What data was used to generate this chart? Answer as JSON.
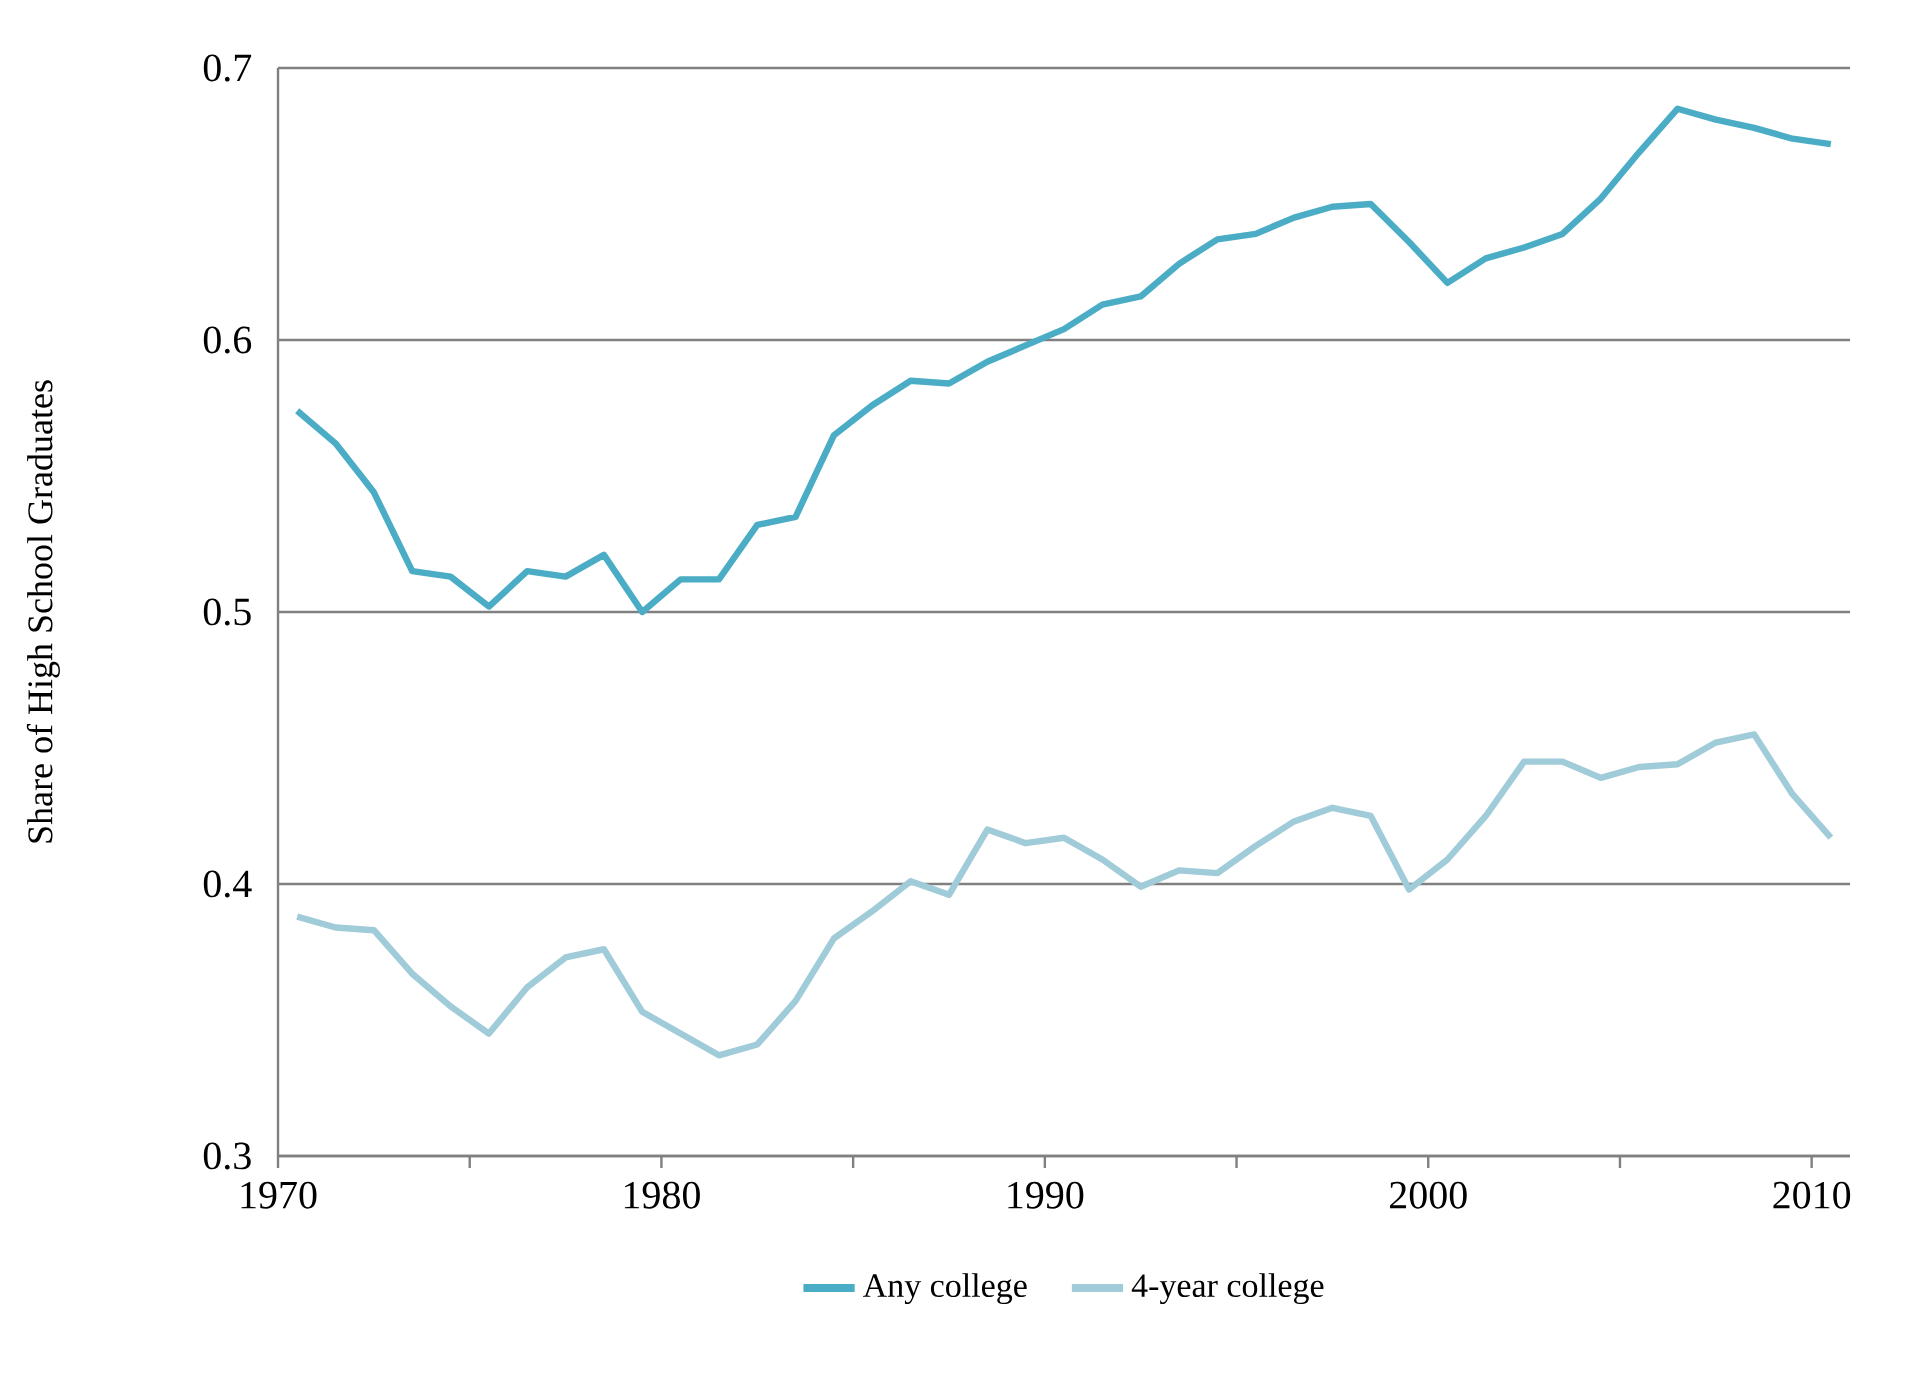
{
  "chart_data": {
    "type": "line",
    "ylabel": "Share of High School Graduates",
    "x": [
      1970.5,
      1971.5,
      1972.5,
      1973.5,
      1974.5,
      1975.5,
      1976.5,
      1977.5,
      1978.5,
      1979.5,
      1980.5,
      1981.5,
      1982.5,
      1983.5,
      1984.5,
      1985.5,
      1986.5,
      1987.5,
      1988.5,
      1989.5,
      1990.5,
      1991.5,
      1992.5,
      1993.5,
      1994.5,
      1995.5,
      1996.5,
      1997.5,
      1998.5,
      1999.5,
      2000.5,
      2001.5,
      2002.5,
      2003.5,
      2004.5,
      2005.5,
      2006.5,
      2007.5,
      2008.5,
      2009.5,
      2010.5
    ],
    "series": [
      {
        "name": "Any college",
        "color": "#4bacc6",
        "values": [
          0.574,
          0.562,
          0.544,
          0.515,
          0.513,
          0.502,
          0.515,
          0.513,
          0.521,
          0.5,
          0.512,
          0.512,
          0.532,
          0.535,
          0.565,
          0.576,
          0.585,
          0.584,
          0.592,
          0.598,
          0.604,
          0.613,
          0.616,
          0.628,
          0.637,
          0.639,
          0.645,
          0.649,
          0.65,
          0.636,
          0.621,
          0.63,
          0.634,
          0.639,
          0.652,
          0.669,
          0.685,
          0.681,
          0.678,
          0.674,
          0.672
        ]
      },
      {
        "name": "4-year college",
        "color": "#a0cbd8",
        "values": [
          0.388,
          0.384,
          0.383,
          0.367,
          0.355,
          0.345,
          0.362,
          0.373,
          0.376,
          0.353,
          0.345,
          0.337,
          0.341,
          0.357,
          0.38,
          0.39,
          0.401,
          0.396,
          0.42,
          0.415,
          0.417,
          0.409,
          0.399,
          0.405,
          0.404,
          0.414,
          0.423,
          0.428,
          0.425,
          0.398,
          0.409,
          0.425,
          0.445,
          0.445,
          0.439,
          0.443,
          0.444,
          0.452,
          0.455,
          0.433,
          0.417
        ]
      }
    ],
    "xlim": [
      1970,
      2011
    ],
    "xticks": [
      1970,
      {
        "value": 1975,
        "label": null
      },
      1980,
      {
        "value": 1985,
        "label": null
      },
      1990,
      {
        "value": 1995,
        "label": null
      },
      2000,
      {
        "value": 2005,
        "label": null
      },
      2010
    ],
    "ylim": [
      0.3,
      0.7
    ],
    "yticks": [
      0.3,
      0.4,
      0.5,
      0.6,
      0.7
    ],
    "grid": "y",
    "legend": "bottom",
    "marker": "none",
    "line_style": "solid"
  }
}
